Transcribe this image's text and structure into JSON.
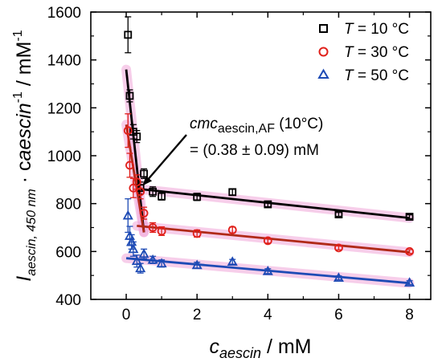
{
  "chart_data": {
    "type": "scatter",
    "x_axis": {
      "label": "c",
      "label_sub": "aescin",
      "label_rest": " / mM",
      "range": [
        -1,
        8.6
      ],
      "ticks": [
        "0",
        "2",
        "4",
        "6",
        "8"
      ]
    },
    "y_axis": {
      "label_main": "I",
      "label_sub": "aescin, 450 nm",
      "label_mid": " · c",
      "label_sub2": "aescin",
      "label_sup": "-1",
      "label_rest": " / mM",
      "label_sup2": "-1",
      "range": [
        400,
        1600
      ],
      "ticks": [
        "400",
        "600",
        "800",
        "1000",
        "1200",
        "1400",
        "1600"
      ]
    },
    "legend": {
      "placement": "top-right",
      "items": [
        {
          "italic": "T",
          "text": " = 10 °C"
        },
        {
          "italic": "T",
          "text": " = 30 °C"
        },
        {
          "italic": "T",
          "text": " = 50 °C"
        }
      ]
    },
    "annotation": {
      "main": "cmc",
      "sub": "aescin,AF",
      "paren": " (10°C)",
      "line2": "= (0.38 ± 0.09) mM",
      "arrow_target": [
        0.38,
        860
      ]
    },
    "series": [
      {
        "name": "T = 10 °C",
        "marker": "square",
        "color": "#000000",
        "points": [
          {
            "x": 0.05,
            "y": 1505,
            "err": 75
          },
          {
            "x": 0.1,
            "y": 1250,
            "err": 25
          },
          {
            "x": 0.2,
            "y": 1100,
            "err": 30
          },
          {
            "x": 0.3,
            "y": 1080,
            "err": 25
          },
          {
            "x": 0.4,
            "y": 865,
            "err": 25
          },
          {
            "x": 0.5,
            "y": 925,
            "err": 20
          },
          {
            "x": 0.75,
            "y": 850,
            "err": 20
          },
          {
            "x": 1.0,
            "y": 830,
            "err": 15
          },
          {
            "x": 2.0,
            "y": 828,
            "err": 15
          },
          {
            "x": 3.0,
            "y": 848,
            "err": 12
          },
          {
            "x": 4.0,
            "y": 797,
            "err": 10
          },
          {
            "x": 6.0,
            "y": 755,
            "err": 8
          },
          {
            "x": 8.0,
            "y": 745,
            "err": 8
          }
        ],
        "fit_lines": [
          {
            "x": [
              0.0,
              0.5
            ],
            "y": [
              1360,
              680
            ]
          },
          {
            "x": [
              0.3,
              8.0
            ],
            "y": [
              862,
              740
            ]
          }
        ]
      },
      {
        "name": "T = 30 °C",
        "marker": "circle",
        "color": "#e0201a",
        "points": [
          {
            "x": 0.05,
            "y": 1105,
            "err": 70
          },
          {
            "x": 0.1,
            "y": 960,
            "err": 50
          },
          {
            "x": 0.2,
            "y": 865,
            "err": 40
          },
          {
            "x": 0.3,
            "y": 890,
            "err": 30
          },
          {
            "x": 0.4,
            "y": 850,
            "err": 30
          },
          {
            "x": 0.5,
            "y": 760,
            "err": 25
          },
          {
            "x": 0.75,
            "y": 700,
            "err": 20
          },
          {
            "x": 1.0,
            "y": 685,
            "err": 18
          },
          {
            "x": 2.0,
            "y": 675,
            "err": 15
          },
          {
            "x": 3.0,
            "y": 690,
            "err": 12
          },
          {
            "x": 4.0,
            "y": 645,
            "err": 10
          },
          {
            "x": 6.0,
            "y": 615,
            "err": 8
          },
          {
            "x": 8.0,
            "y": 600,
            "err": 8
          }
        ],
        "fit_lines": [
          {
            "x": [
              0.0,
              0.5
            ],
            "y": [
              1130,
              680
            ]
          },
          {
            "x": [
              0.3,
              8.0
            ],
            "y": [
              707,
              597
            ]
          }
        ]
      },
      {
        "name": "T = 50 °C",
        "marker": "triangle",
        "color": "#1e4bb5",
        "points": [
          {
            "x": 0.05,
            "y": 750,
            "err": 70
          },
          {
            "x": 0.1,
            "y": 665,
            "err": 40
          },
          {
            "x": 0.15,
            "y": 640,
            "err": 30
          },
          {
            "x": 0.2,
            "y": 610,
            "err": 30
          },
          {
            "x": 0.3,
            "y": 560,
            "err": 25
          },
          {
            "x": 0.4,
            "y": 530,
            "err": 20
          },
          {
            "x": 0.5,
            "y": 590,
            "err": 20
          },
          {
            "x": 0.75,
            "y": 565,
            "err": 15
          },
          {
            "x": 1.0,
            "y": 550,
            "err": 15
          },
          {
            "x": 2.0,
            "y": 543,
            "err": 12
          },
          {
            "x": 3.0,
            "y": 557,
            "err": 10
          },
          {
            "x": 4.0,
            "y": 518,
            "err": 10
          },
          {
            "x": 6.0,
            "y": 490,
            "err": 8
          },
          {
            "x": 8.0,
            "y": 470,
            "err": 8
          }
        ],
        "fit_lines": [
          {
            "x": [
              0.0,
              8.0
            ],
            "y": [
              572,
              468
            ]
          }
        ]
      }
    ]
  }
}
